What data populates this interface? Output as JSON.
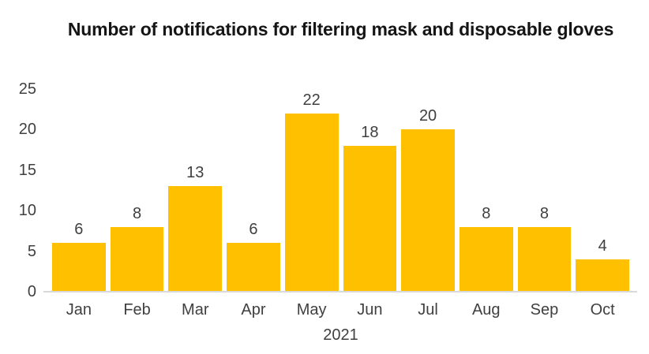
{
  "chart_data": {
    "type": "bar",
    "title": "Number of notifications for filtering mask and disposable gloves",
    "categories": [
      "Jan",
      "Feb",
      "Mar",
      "Apr",
      "May",
      "Jun",
      "Jul",
      "Aug",
      "Sep",
      "Oct"
    ],
    "values": [
      6,
      8,
      13,
      6,
      22,
      18,
      20,
      8,
      8,
      4
    ],
    "xlabel": "2021",
    "ylabel": "",
    "ylim": [
      0,
      25
    ],
    "yticks": [
      0,
      5,
      10,
      15,
      20,
      25
    ],
    "grid": false,
    "legend": "none",
    "data_labels": true,
    "colors": {
      "bar": "#FFC000",
      "label_text": "#404040",
      "title_text": "#151515",
      "axis_line": "#D9D9D9",
      "background": "#FFFFFF"
    }
  }
}
